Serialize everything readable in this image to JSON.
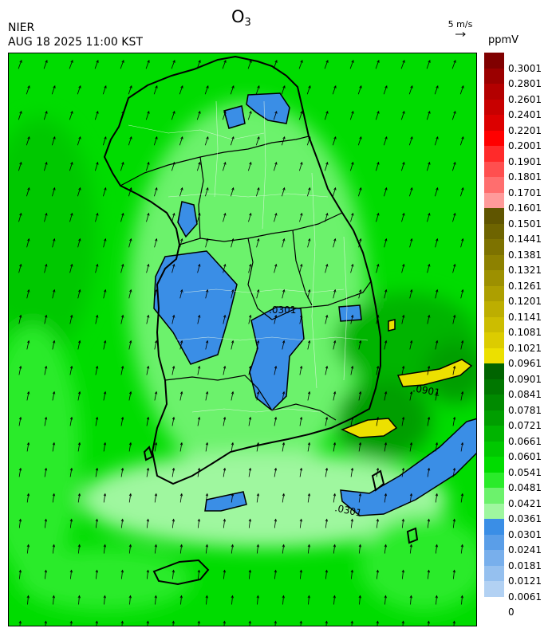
{
  "header": {
    "agency": "NIER",
    "datetime": "AUG 18 2025 11:00 KST",
    "title_main": "O",
    "title_sub": "3",
    "wind_reference_label": "5 m/s",
    "unit": "ppmV"
  },
  "map": {
    "contour_labels": [
      ".0301",
      ".0301",
      ".0901"
    ]
  },
  "legend": {
    "levels": [
      {
        "label": "0.3001",
        "color": "#800000"
      },
      {
        "label": "0.2801",
        "color": "#9b0000"
      },
      {
        "label": "0.2601",
        "color": "#b30000"
      },
      {
        "label": "0.2401",
        "color": "#c80000"
      },
      {
        "label": "0.2201",
        "color": "#dc0000"
      },
      {
        "label": "0.2001",
        "color": "#ff0000"
      },
      {
        "label": "0.1901",
        "color": "#ff2a2a"
      },
      {
        "label": "0.1801",
        "color": "#ff4f4f"
      },
      {
        "label": "0.1701",
        "color": "#ff6e6e"
      },
      {
        "label": "0.1601",
        "color": "#ff9a9a"
      },
      {
        "label": "0.1501",
        "color": "#5f5500"
      },
      {
        "label": "0.1441",
        "color": "#6e6400"
      },
      {
        "label": "0.1381",
        "color": "#7d7200"
      },
      {
        "label": "0.1321",
        "color": "#8d8100"
      },
      {
        "label": "0.1261",
        "color": "#9d9000"
      },
      {
        "label": "0.1201",
        "color": "#ad9f00"
      },
      {
        "label": "0.1141",
        "color": "#bdae00"
      },
      {
        "label": "0.1081",
        "color": "#ccbd00"
      },
      {
        "label": "0.1021",
        "color": "#dccc00"
      },
      {
        "label": "0.0961",
        "color": "#ece000"
      },
      {
        "label": "0.0901",
        "color": "#006400"
      },
      {
        "label": "0.0841",
        "color": "#007700"
      },
      {
        "label": "0.0781",
        "color": "#008a00"
      },
      {
        "label": "0.0721",
        "color": "#009e00"
      },
      {
        "label": "0.0661",
        "color": "#00b400"
      },
      {
        "label": "0.0601",
        "color": "#00c800"
      },
      {
        "label": "0.0541",
        "color": "#00dc00"
      },
      {
        "label": "0.0481",
        "color": "#2aeb2a"
      },
      {
        "label": "0.0421",
        "color": "#6cf26c"
      },
      {
        "label": "0.0361",
        "color": "#9ff79f"
      },
      {
        "label": "0.0301",
        "color": "#3a8ee6"
      },
      {
        "label": "0.0241",
        "color": "#5a9ee8"
      },
      {
        "label": "0.0181",
        "color": "#78afec"
      },
      {
        "label": "0.0121",
        "color": "#95c0ef"
      },
      {
        "label": "0.0061",
        "color": "#b2d1f3"
      },
      {
        "label": "0",
        "color": ""
      }
    ]
  }
}
